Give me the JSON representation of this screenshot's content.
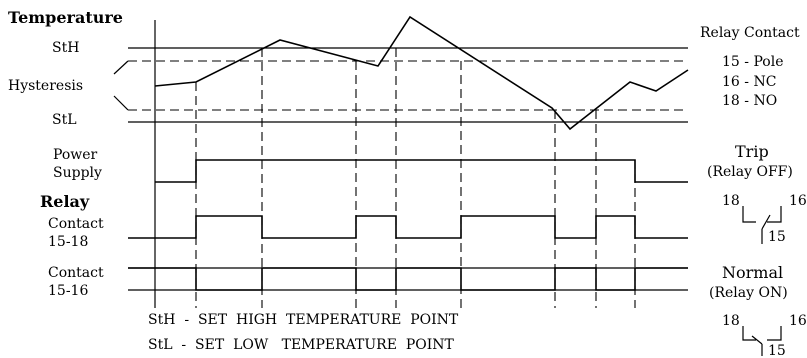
{
  "labels": {
    "temperature": "Temperature",
    "sth": "StH",
    "hysteresis": "Hysteresis",
    "stl": "StL",
    "power_line1": "Power",
    "power_line2": "Supply",
    "relay": "Relay",
    "contact1_line1": "Contact",
    "contact1_line2": "15-18",
    "contact2_line1": "Contact",
    "contact2_line2": "15-16"
  },
  "legend": {
    "line1": "StH  -  SET  HIGH  TEMPERATURE  POINT",
    "line2": "StL  -  SET  LOW   TEMPERATURE  POINT"
  },
  "relay_contact": {
    "title": "Relay Contact",
    "pins": [
      "15 - Pole",
      "16 - NC",
      "18 - NO"
    ]
  },
  "trip": {
    "title": "Trip",
    "subtitle": "(Relay OFF)",
    "pin_left": "18",
    "pin_right": "16",
    "pin_bottom": "15"
  },
  "normal": {
    "title": "Normal",
    "subtitle": "(Relay ON)",
    "pin_left": "18",
    "pin_right": "16",
    "pin_bottom": "15"
  }
}
